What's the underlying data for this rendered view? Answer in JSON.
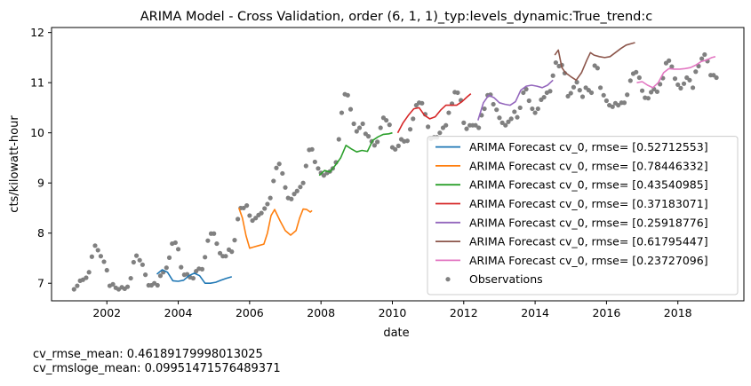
{
  "chart_data": {
    "type": "line",
    "title": "ARIMA Model - Cross Validation, order (6, 1, 1)_typ:levels_dynamic:True_trend:c",
    "xlabel": "date",
    "ylabel": "cts/kilowatt-hour",
    "xlim": [
      2000.45,
      2019.85
    ],
    "ylim": [
      6.65,
      12.1
    ],
    "x_ticks": [
      2002,
      2004,
      2006,
      2008,
      2010,
      2012,
      2014,
      2016,
      2018
    ],
    "y_ticks": [
      7,
      8,
      9,
      10,
      11,
      12
    ],
    "grid": false,
    "legend_position": "lower-right",
    "observations": {
      "name": "Observations",
      "color": "#808080",
      "points": [
        [
          2001.08,
          6.88
        ],
        [
          2001.17,
          6.95
        ],
        [
          2001.25,
          7.05
        ],
        [
          2001.33,
          7.07
        ],
        [
          2001.42,
          7.11
        ],
        [
          2001.5,
          7.22
        ],
        [
          2001.58,
          7.53
        ],
        [
          2001.67,
          7.75
        ],
        [
          2001.75,
          7.66
        ],
        [
          2001.83,
          7.54
        ],
        [
          2001.92,
          7.43
        ],
        [
          2002.0,
          7.26
        ],
        [
          2002.08,
          6.95
        ],
        [
          2002.17,
          6.98
        ],
        [
          2002.25,
          6.91
        ],
        [
          2002.33,
          6.88
        ],
        [
          2002.42,
          6.92
        ],
        [
          2002.5,
          6.89
        ],
        [
          2002.58,
          6.93
        ],
        [
          2002.67,
          7.1
        ],
        [
          2002.75,
          7.42
        ],
        [
          2002.83,
          7.55
        ],
        [
          2002.92,
          7.46
        ],
        [
          2003.0,
          7.37
        ],
        [
          2003.08,
          7.17
        ],
        [
          2003.17,
          6.96
        ],
        [
          2003.25,
          6.96
        ],
        [
          2003.33,
          7.0
        ],
        [
          2003.42,
          6.96
        ],
        [
          2003.5,
          7.15
        ],
        [
          2003.58,
          7.22
        ],
        [
          2003.67,
          7.31
        ],
        [
          2003.75,
          7.51
        ],
        [
          2003.83,
          7.79
        ],
        [
          2003.92,
          7.81
        ],
        [
          2004.0,
          7.68
        ],
        [
          2004.08,
          7.32
        ],
        [
          2004.17,
          7.17
        ],
        [
          2004.25,
          7.18
        ],
        [
          2004.33,
          7.12
        ],
        [
          2004.42,
          7.1
        ],
        [
          2004.5,
          7.24
        ],
        [
          2004.58,
          7.29
        ],
        [
          2004.67,
          7.28
        ],
        [
          2004.75,
          7.52
        ],
        [
          2004.83,
          7.85
        ],
        [
          2004.92,
          7.99
        ],
        [
          2005.0,
          7.99
        ],
        [
          2005.08,
          7.79
        ],
        [
          2005.17,
          7.6
        ],
        [
          2005.25,
          7.54
        ],
        [
          2005.33,
          7.54
        ],
        [
          2005.42,
          7.67
        ],
        [
          2005.5,
          7.63
        ],
        [
          2005.58,
          7.86
        ],
        [
          2005.67,
          8.28
        ],
        [
          2005.75,
          8.5
        ],
        [
          2005.83,
          8.5
        ],
        [
          2005.92,
          8.55
        ],
        [
          2006.0,
          8.35
        ],
        [
          2006.08,
          8.25
        ],
        [
          2006.17,
          8.3
        ],
        [
          2006.25,
          8.36
        ],
        [
          2006.33,
          8.4
        ],
        [
          2006.42,
          8.49
        ],
        [
          2006.5,
          8.58
        ],
        [
          2006.58,
          8.7
        ],
        [
          2006.67,
          9.04
        ],
        [
          2006.75,
          9.3
        ],
        [
          2006.83,
          9.38
        ],
        [
          2006.92,
          9.19
        ],
        [
          2007.0,
          8.91
        ],
        [
          2007.08,
          8.7
        ],
        [
          2007.17,
          8.68
        ],
        [
          2007.25,
          8.78
        ],
        [
          2007.33,
          8.84
        ],
        [
          2007.42,
          8.92
        ],
        [
          2007.5,
          9.0
        ],
        [
          2007.58,
          9.34
        ],
        [
          2007.67,
          9.66
        ],
        [
          2007.75,
          9.67
        ],
        [
          2007.83,
          9.42
        ],
        [
          2007.92,
          9.29
        ],
        [
          2008.0,
          9.2
        ],
        [
          2008.08,
          9.15
        ],
        [
          2008.17,
          9.2
        ],
        [
          2008.25,
          9.23
        ],
        [
          2008.33,
          9.29
        ],
        [
          2008.42,
          9.41
        ],
        [
          2008.5,
          9.87
        ],
        [
          2008.58,
          10.4
        ],
        [
          2008.67,
          10.77
        ],
        [
          2008.75,
          10.75
        ],
        [
          2008.83,
          10.47
        ],
        [
          2008.92,
          10.18
        ],
        [
          2009.0,
          10.03
        ],
        [
          2009.08,
          10.1
        ],
        [
          2009.17,
          10.18
        ],
        [
          2009.25,
          9.98
        ],
        [
          2009.33,
          9.93
        ],
        [
          2009.42,
          9.83
        ],
        [
          2009.5,
          9.75
        ],
        [
          2009.58,
          9.82
        ],
        [
          2009.67,
          10.1
        ],
        [
          2009.75,
          10.3
        ],
        [
          2009.83,
          10.25
        ],
        [
          2009.92,
          10.16
        ],
        [
          2010.0,
          9.71
        ],
        [
          2010.08,
          9.67
        ],
        [
          2010.17,
          9.74
        ],
        [
          2010.25,
          9.87
        ],
        [
          2010.33,
          9.83
        ],
        [
          2010.42,
          9.84
        ],
        [
          2010.5,
          10.07
        ],
        [
          2010.58,
          10.28
        ],
        [
          2010.67,
          10.55
        ],
        [
          2010.75,
          10.6
        ],
        [
          2010.83,
          10.59
        ],
        [
          2010.92,
          10.37
        ],
        [
          2011.0,
          10.12
        ],
        [
          2011.08,
          9.88
        ],
        [
          2011.17,
          9.91
        ],
        [
          2011.25,
          9.91
        ],
        [
          2011.33,
          10.0
        ],
        [
          2011.42,
          10.1
        ],
        [
          2011.5,
          10.15
        ],
        [
          2011.58,
          10.4
        ],
        [
          2011.67,
          10.58
        ],
        [
          2011.75,
          10.81
        ],
        [
          2011.83,
          10.8
        ],
        [
          2011.92,
          10.65
        ],
        [
          2012.0,
          10.2
        ],
        [
          2012.08,
          10.08
        ],
        [
          2012.17,
          10.15
        ],
        [
          2012.25,
          10.15
        ],
        [
          2012.33,
          10.15
        ],
        [
          2012.42,
          10.1
        ],
        [
          2012.5,
          10.35
        ],
        [
          2012.58,
          10.48
        ],
        [
          2012.67,
          10.75
        ],
        [
          2012.75,
          10.76
        ],
        [
          2012.83,
          10.57
        ],
        [
          2012.92,
          10.46
        ],
        [
          2013.0,
          10.3
        ],
        [
          2013.08,
          10.2
        ],
        [
          2013.17,
          10.15
        ],
        [
          2013.25,
          10.22
        ],
        [
          2013.33,
          10.28
        ],
        [
          2013.42,
          10.42
        ],
        [
          2013.5,
          10.31
        ],
        [
          2013.58,
          10.5
        ],
        [
          2013.67,
          10.8
        ],
        [
          2013.75,
          10.87
        ],
        [
          2013.83,
          10.64
        ],
        [
          2013.92,
          10.48
        ],
        [
          2014.0,
          10.4
        ],
        [
          2014.08,
          10.48
        ],
        [
          2014.17,
          10.66
        ],
        [
          2014.25,
          10.71
        ],
        [
          2014.33,
          10.8
        ],
        [
          2014.42,
          10.83
        ],
        [
          2014.5,
          11.14
        ],
        [
          2014.58,
          11.4
        ],
        [
          2014.67,
          11.33
        ],
        [
          2014.75,
          11.35
        ],
        [
          2014.83,
          11.19
        ],
        [
          2014.92,
          10.73
        ],
        [
          2015.0,
          10.79
        ],
        [
          2015.08,
          10.91
        ],
        [
          2015.17,
          11.01
        ],
        [
          2015.25,
          10.85
        ],
        [
          2015.33,
          10.72
        ],
        [
          2015.42,
          10.9
        ],
        [
          2015.5,
          10.85
        ],
        [
          2015.58,
          10.8
        ],
        [
          2015.67,
          11.34
        ],
        [
          2015.75,
          11.29
        ],
        [
          2015.83,
          10.9
        ],
        [
          2015.92,
          10.75
        ],
        [
          2016.0,
          10.64
        ],
        [
          2016.08,
          10.55
        ],
        [
          2016.17,
          10.52
        ],
        [
          2016.25,
          10.59
        ],
        [
          2016.33,
          10.55
        ],
        [
          2016.42,
          10.6
        ],
        [
          2016.5,
          10.6
        ],
        [
          2016.58,
          10.76
        ],
        [
          2016.67,
          11.04
        ],
        [
          2016.75,
          11.18
        ],
        [
          2016.83,
          11.21
        ],
        [
          2016.92,
          11.1
        ],
        [
          2017.0,
          10.84
        ],
        [
          2017.08,
          10.7
        ],
        [
          2017.17,
          10.69
        ],
        [
          2017.25,
          10.81
        ],
        [
          2017.33,
          10.87
        ],
        [
          2017.42,
          10.82
        ],
        [
          2017.5,
          10.97
        ],
        [
          2017.58,
          11.09
        ],
        [
          2017.67,
          11.39
        ],
        [
          2017.75,
          11.44
        ],
        [
          2017.83,
          11.32
        ],
        [
          2017.92,
          11.08
        ],
        [
          2018.0,
          10.96
        ],
        [
          2018.08,
          10.89
        ],
        [
          2018.17,
          10.98
        ],
        [
          2018.25,
          11.1
        ],
        [
          2018.33,
          11.05
        ],
        [
          2018.42,
          10.9
        ],
        [
          2018.5,
          11.22
        ],
        [
          2018.58,
          11.33
        ],
        [
          2018.67,
          11.48
        ],
        [
          2018.75,
          11.56
        ],
        [
          2018.83,
          11.43
        ],
        [
          2018.92,
          11.15
        ],
        [
          2019.0,
          11.15
        ],
        [
          2019.08,
          11.1
        ]
      ]
    },
    "series": [
      {
        "name": "ARIMA Forecast cv_0, rmse= [0.52712553]",
        "color": "#1f77b4",
        "x": [
          2003.4,
          2003.55,
          2003.7,
          2003.85,
          2004.0,
          2004.15,
          2004.3,
          2004.45,
          2004.6,
          2004.75,
          2004.9,
          2005.05,
          2005.2,
          2005.35,
          2005.5
        ],
        "y": [
          7.18,
          7.27,
          7.22,
          7.05,
          7.04,
          7.06,
          7.15,
          7.2,
          7.15,
          7.0,
          7.0,
          7.02,
          7.06,
          7.1,
          7.13
        ]
      },
      {
        "name": "ARIMA Forecast cv_0, rmse= [0.78446332]",
        "color": "#ff7f0e",
        "x": [
          2005.7,
          2005.8,
          2005.9,
          2006.0,
          2006.1,
          2006.25,
          2006.4,
          2006.5,
          2006.6,
          2006.7,
          2006.85,
          2007.0,
          2007.15,
          2007.3,
          2007.4,
          2007.5,
          2007.6,
          2007.7,
          2007.75
        ],
        "y": [
          8.5,
          8.3,
          7.95,
          7.7,
          7.72,
          7.75,
          7.78,
          8.0,
          8.35,
          8.47,
          8.25,
          8.05,
          7.96,
          8.05,
          8.3,
          8.48,
          8.47,
          8.42,
          8.45
        ]
      },
      {
        "name": "ARIMA Forecast cv_0, rmse= [0.43540985]",
        "color": "#2ca02c",
        "x": [
          2007.95,
          2008.1,
          2008.25,
          2008.4,
          2008.55,
          2008.7,
          2008.85,
          2009.0,
          2009.15,
          2009.3,
          2009.45,
          2009.6,
          2009.75,
          2009.9,
          2010.0
        ],
        "y": [
          9.15,
          9.25,
          9.22,
          9.35,
          9.5,
          9.75,
          9.68,
          9.62,
          9.65,
          9.63,
          9.85,
          9.92,
          9.97,
          9.98,
          10.0
        ]
      },
      {
        "name": "ARIMA Forecast cv_0, rmse= [0.37183071]",
        "color": "#d62728",
        "x": [
          2010.15,
          2010.3,
          2010.45,
          2010.6,
          2010.75,
          2010.9,
          2011.05,
          2011.2,
          2011.35,
          2011.5,
          2011.65,
          2011.8,
          2011.95,
          2012.1,
          2012.2
        ],
        "y": [
          10.0,
          10.2,
          10.35,
          10.48,
          10.5,
          10.35,
          10.28,
          10.32,
          10.45,
          10.55,
          10.55,
          10.55,
          10.62,
          10.72,
          10.78
        ]
      },
      {
        "name": "ARIMA Forecast cv_0, rmse= [0.25918776]",
        "color": "#9467bd",
        "x": [
          2012.4,
          2012.55,
          2012.7,
          2012.85,
          2013.0,
          2013.15,
          2013.3,
          2013.45,
          2013.6,
          2013.75,
          2013.9,
          2014.05,
          2014.2,
          2014.35,
          2014.5
        ],
        "y": [
          10.25,
          10.6,
          10.75,
          10.7,
          10.6,
          10.57,
          10.55,
          10.62,
          10.85,
          10.93,
          10.95,
          10.93,
          10.9,
          10.95,
          11.05
        ]
      },
      {
        "name": "ARIMA Forecast cv_0, rmse= [0.61795447]",
        "color": "#8c564b",
        "x": [
          2014.55,
          2014.65,
          2014.75,
          2014.85,
          2015.0,
          2015.15,
          2015.3,
          2015.45,
          2015.55,
          2015.65,
          2015.8,
          2015.95,
          2016.1,
          2016.25,
          2016.4,
          2016.55,
          2016.7,
          2016.8
        ],
        "y": [
          11.55,
          11.65,
          11.3,
          11.2,
          11.12,
          11.05,
          11.2,
          11.45,
          11.6,
          11.55,
          11.52,
          11.5,
          11.52,
          11.6,
          11.68,
          11.75,
          11.78,
          11.8
        ]
      },
      {
        "name": "ARIMA Forecast cv_0, rmse= [0.23727096]",
        "color": "#e377c2",
        "x": [
          2016.85,
          2017.0,
          2017.15,
          2017.3,
          2017.45,
          2017.6,
          2017.75,
          2017.9,
          2018.05,
          2018.2,
          2018.35,
          2018.5,
          2018.65,
          2018.8,
          2018.95,
          2019.05
        ],
        "y": [
          11.0,
          11.02,
          10.95,
          10.9,
          11.0,
          11.2,
          11.28,
          11.27,
          11.27,
          11.28,
          11.3,
          11.35,
          11.42,
          11.45,
          11.5,
          11.52
        ]
      }
    ]
  },
  "footer": {
    "cv_rmse_mean": "cv_rmse_mean: 0.46189179998013025",
    "cv_rmsloge_mean": "cv_rmsloge_mean: 0.09951471576489371"
  }
}
